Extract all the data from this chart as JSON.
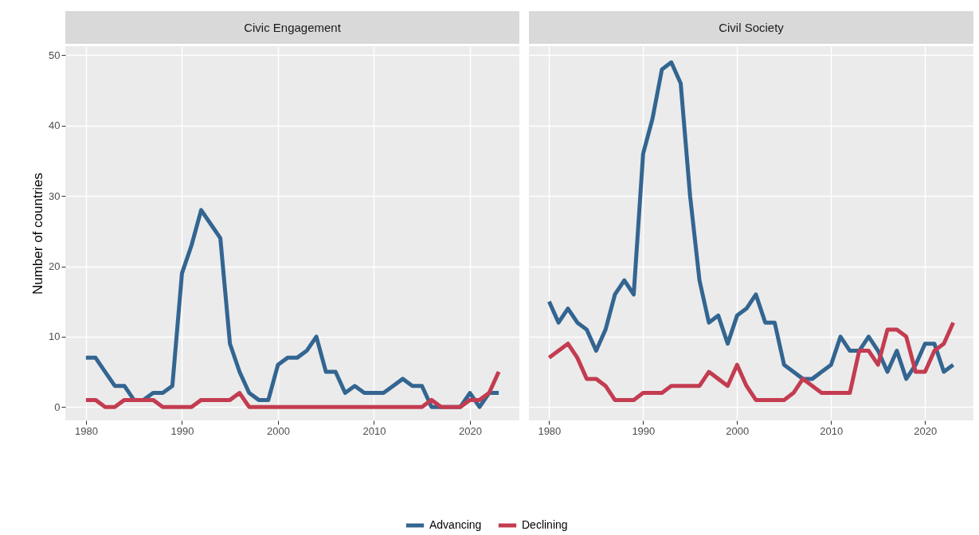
{
  "chart_data": [
    {
      "type": "line",
      "title": "Civic Engagement",
      "ylabel": "Number of countries",
      "x": [
        1980,
        1981,
        1982,
        1983,
        1984,
        1985,
        1986,
        1987,
        1988,
        1989,
        1990,
        1991,
        1992,
        1993,
        1994,
        1995,
        1996,
        1997,
        1998,
        1999,
        2000,
        2001,
        2002,
        2003,
        2004,
        2005,
        2006,
        2007,
        2008,
        2009,
        2010,
        2011,
        2012,
        2013,
        2014,
        2015,
        2016,
        2017,
        2018,
        2019,
        2020,
        2021,
        2022,
        2023
      ],
      "xlim": [
        1977.85,
        2025.15
      ],
      "xticks": [
        1980,
        1990,
        2000,
        2010,
        2020
      ],
      "ylim": [
        -1.9,
        51.3
      ],
      "yticks": [
        0,
        10,
        20,
        30,
        40,
        50
      ],
      "grid": true,
      "legend": "bottom",
      "line_style": "solid",
      "series": [
        {
          "name": "Advancing",
          "color": "#336591",
          "values": [
            7,
            7,
            5,
            3,
            3,
            1,
            1,
            2,
            2,
            3,
            19,
            23,
            28,
            26,
            24,
            9,
            5,
            2,
            1,
            1,
            6,
            7,
            7,
            8,
            10,
            5,
            5,
            2,
            3,
            2,
            2,
            2,
            3,
            4,
            3,
            3,
            0,
            0,
            0,
            0,
            2,
            0,
            2,
            2
          ]
        },
        {
          "name": "Declining",
          "color": "#c33c50",
          "values": [
            1,
            1,
            0,
            0,
            1,
            1,
            1,
            1,
            0,
            0,
            0,
            0,
            1,
            1,
            1,
            1,
            2,
            0,
            0,
            0,
            0,
            0,
            0,
            0,
            0,
            0,
            0,
            0,
            0,
            0,
            0,
            0,
            0,
            0,
            0,
            0,
            1,
            0,
            0,
            0,
            1,
            1,
            2,
            5
          ]
        }
      ]
    },
    {
      "type": "line",
      "title": "Civil Society",
      "x": [
        1980,
        1981,
        1982,
        1983,
        1984,
        1985,
        1986,
        1987,
        1988,
        1989,
        1990,
        1991,
        1992,
        1993,
        1994,
        1995,
        1996,
        1997,
        1998,
        1999,
        2000,
        2001,
        2002,
        2003,
        2004,
        2005,
        2006,
        2007,
        2008,
        2009,
        2010,
        2011,
        2012,
        2013,
        2014,
        2015,
        2016,
        2017,
        2018,
        2019,
        2020,
        2021,
        2022,
        2023
      ],
      "xlim": [
        1977.85,
        2025.15
      ],
      "xticks": [
        1980,
        1990,
        2000,
        2010,
        2020
      ],
      "ylim": [
        -1.9,
        51.3
      ],
      "yticks": [
        0,
        10,
        20,
        30,
        40,
        50
      ],
      "grid": true,
      "tick_labels": "x",
      "legend": "bottom",
      "line_style": "solid",
      "series": [
        {
          "name": "Advancing",
          "color": "#336591",
          "values": [
            15,
            12,
            14,
            12,
            11,
            8,
            11,
            16,
            18,
            16,
            36,
            41,
            48,
            49,
            46,
            30,
            18,
            12,
            13,
            9,
            13,
            14,
            16,
            12,
            12,
            6,
            5,
            4,
            4,
            5,
            6,
            10,
            8,
            8,
            10,
            8,
            5,
            8,
            4,
            6,
            9,
            9,
            5,
            6
          ]
        },
        {
          "name": "Declining",
          "color": "#c33c50",
          "values": [
            7,
            8,
            9,
            7,
            4,
            4,
            3,
            1,
            1,
            1,
            2,
            2,
            2,
            3,
            3,
            3,
            3,
            5,
            4,
            3,
            6,
            3,
            1,
            1,
            1,
            1,
            2,
            4,
            3,
            2,
            2,
            2,
            2,
            8,
            8,
            6,
            11,
            11,
            10,
            5,
            5,
            8,
            9,
            12
          ]
        }
      ]
    }
  ]
}
